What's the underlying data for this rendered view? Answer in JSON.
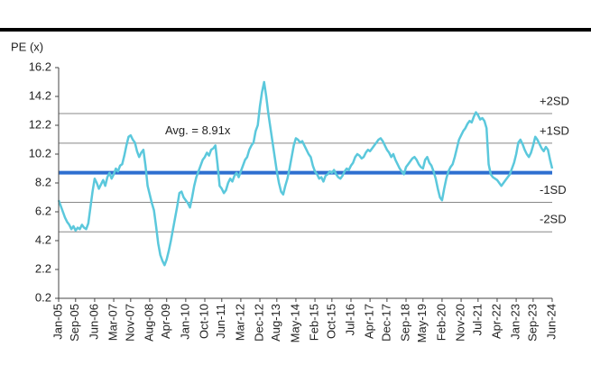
{
  "chart_data": {
    "type": "line",
    "y_label": "PE (x)",
    "ylim": [
      0.2,
      16.2
    ],
    "yticks": [
      0.2,
      2.2,
      4.2,
      6.2,
      8.2,
      10.2,
      12.2,
      14.2,
      16.2
    ],
    "categories": [
      "Jan-05",
      null,
      null,
      null,
      null,
      null,
      null,
      null,
      "Sep-05",
      null,
      null,
      null,
      null,
      null,
      null,
      null,
      null,
      "Jun-06",
      null,
      null,
      null,
      null,
      null,
      null,
      null,
      null,
      "Mar-07",
      null,
      null,
      null,
      null,
      null,
      null,
      null,
      "Nov-07",
      null,
      null,
      null,
      null,
      null,
      null,
      null,
      null,
      "Aug-08",
      null,
      null,
      null,
      null,
      null,
      null,
      null,
      "Apr-09",
      null,
      null,
      null,
      null,
      null,
      null,
      null,
      null,
      "Jan-10",
      null,
      null,
      null,
      null,
      null,
      null,
      null,
      null,
      "Oct-10",
      null,
      null,
      null,
      null,
      null,
      null,
      null,
      "Jun-11",
      null,
      null,
      null,
      null,
      null,
      null,
      null,
      null,
      "Mar-12",
      null,
      null,
      null,
      null,
      null,
      null,
      null,
      null,
      "Dec-12",
      null,
      null,
      null,
      null,
      null,
      null,
      null,
      "Aug-13",
      null,
      null,
      null,
      null,
      null,
      null,
      null,
      null,
      "May-14",
      null,
      null,
      null,
      null,
      null,
      null,
      null,
      null,
      "Feb-15",
      null,
      null,
      null,
      null,
      null,
      null,
      null,
      "Oct-15",
      null,
      null,
      null,
      null,
      null,
      null,
      null,
      null,
      "Jul-16",
      null,
      null,
      null,
      null,
      null,
      null,
      null,
      null,
      "Apr-17",
      null,
      null,
      null,
      null,
      null,
      null,
      null,
      "Dec-17",
      null,
      null,
      null,
      null,
      null,
      null,
      null,
      null,
      "Sep-18",
      null,
      null,
      null,
      null,
      null,
      null,
      null,
      "May-19",
      null,
      null,
      null,
      null,
      null,
      null,
      null,
      null,
      "Feb-20",
      null,
      null,
      null,
      null,
      null,
      null,
      null,
      null,
      "Nov-20",
      null,
      null,
      null,
      null,
      null,
      null,
      null,
      "Jul-21",
      null,
      null,
      null,
      null,
      null,
      null,
      null,
      null,
      "Apr-22",
      null,
      null,
      null,
      null,
      null,
      null,
      null,
      null,
      "Jan-23",
      null,
      null,
      null,
      null,
      null,
      null,
      null,
      "Sep-23",
      null,
      null,
      null,
      null,
      null,
      null,
      null,
      null,
      "Jun-24"
    ],
    "series": [
      {
        "name": "PE",
        "color": "#5bc8dc",
        "values": [
          7.0,
          6.6,
          6.2,
          5.8,
          5.5,
          5.3,
          5.0,
          5.2,
          4.9,
          5.1,
          5.0,
          5.3,
          5.1,
          5.0,
          5.4,
          6.5,
          7.6,
          8.5,
          8.2,
          7.8,
          8.1,
          8.4,
          8.0,
          8.6,
          8.9,
          8.5,
          8.8,
          9.2,
          9.0,
          9.4,
          9.5,
          10.1,
          10.8,
          11.4,
          11.5,
          11.2,
          11.0,
          10.4,
          10.0,
          10.3,
          10.5,
          9.4,
          8.0,
          7.4,
          6.8,
          6.3,
          5.2,
          4.0,
          3.2,
          2.8,
          2.5,
          2.9,
          3.5,
          4.2,
          5.0,
          5.8,
          6.6,
          7.5,
          7.6,
          7.2,
          7.0,
          6.8,
          6.5,
          7.2,
          8.0,
          8.6,
          9.0,
          9.4,
          9.8,
          10.0,
          10.3,
          10.1,
          10.5,
          10.6,
          10.8,
          9.5,
          8.0,
          7.8,
          7.5,
          7.7,
          8.2,
          8.5,
          8.3,
          8.7,
          8.9,
          8.6,
          9.0,
          9.4,
          9.8,
          10.0,
          10.5,
          10.8,
          11.0,
          11.8,
          12.2,
          13.5,
          14.5,
          15.2,
          14.2,
          13.0,
          12.0,
          11.0,
          10.0,
          9.0,
          8.2,
          7.6,
          7.4,
          8.0,
          8.5,
          9.2,
          10.0,
          10.8,
          11.3,
          11.2,
          11.0,
          11.1,
          10.8,
          10.5,
          10.2,
          10.0,
          9.4,
          9.0,
          8.8,
          8.5,
          8.6,
          8.3,
          8.7,
          8.8,
          9.0,
          8.9,
          9.1,
          8.8,
          8.6,
          8.5,
          8.7,
          9.0,
          9.2,
          9.1,
          9.4,
          9.6,
          10.0,
          10.2,
          10.1,
          9.9,
          10.0,
          10.3,
          10.5,
          10.4,
          10.6,
          10.8,
          11.0,
          11.2,
          11.3,
          11.1,
          10.8,
          10.5,
          10.3,
          10.0,
          10.2,
          9.8,
          9.5,
          9.2,
          9.0,
          8.8,
          9.3,
          9.5,
          9.7,
          9.9,
          10.0,
          9.8,
          9.5,
          9.3,
          9.2,
          9.8,
          10.0,
          9.6,
          9.4,
          9.0,
          8.5,
          7.8,
          7.2,
          7.0,
          7.8,
          8.5,
          9.0,
          9.3,
          9.5,
          10.0,
          10.6,
          11.2,
          11.5,
          11.8,
          12.0,
          12.3,
          12.5,
          12.4,
          12.8,
          13.1,
          12.9,
          12.6,
          12.7,
          12.5,
          12.0,
          9.5,
          8.8,
          8.6,
          8.5,
          8.4,
          8.2,
          8.0,
          8.2,
          8.4,
          8.6,
          8.8,
          9.2,
          9.6,
          10.2,
          11.0,
          11.2,
          10.9,
          10.5,
          10.2,
          10.0,
          10.3,
          10.8,
          11.4,
          11.2,
          10.9,
          10.6,
          10.4,
          10.7,
          10.5,
          9.8,
          9.2
        ]
      }
    ],
    "reference_lines": [
      {
        "label": "Avg. = 8.91x",
        "value": 8.91,
        "color": "#2e6fd0"
      },
      {
        "label": "+2SD",
        "value": 13.01,
        "color": "#888888"
      },
      {
        "label": "+1SD",
        "value": 10.96,
        "color": "#888888"
      },
      {
        "label": "-1SD",
        "value": 6.86,
        "color": "#888888"
      },
      {
        "label": "-2SD",
        "value": 4.81,
        "color": "#888888"
      }
    ]
  }
}
